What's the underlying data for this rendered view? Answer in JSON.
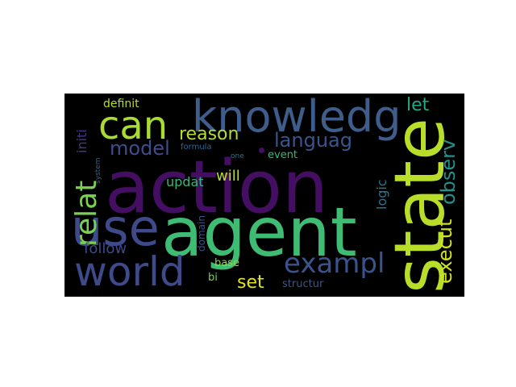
{
  "wordcloud": {
    "background": "#000000",
    "words": [
      {
        "text": "action",
        "color": "#440f63"
      },
      {
        "text": "agent",
        "color": "#3fbc73"
      },
      {
        "text": "state",
        "color": "#b8de29"
      },
      {
        "text": "use",
        "color": "#3f4a8a"
      },
      {
        "text": "knowledg",
        "color": "#3e5d8b"
      },
      {
        "text": "world",
        "color": "#3e4a89"
      },
      {
        "text": "can",
        "color": "#a8db34"
      },
      {
        "text": "exampl",
        "color": "#3a538b"
      },
      {
        "text": "relat",
        "color": "#7ad151"
      },
      {
        "text": "execut",
        "color": "#d2e21b"
      },
      {
        "text": "observ",
        "color": "#21918c"
      },
      {
        "text": "languag",
        "color": "#39558c"
      },
      {
        "text": "model",
        "color": "#3d4e8a"
      },
      {
        "text": "reason",
        "color": "#b5de2b"
      },
      {
        "text": "let",
        "color": "#22a785"
      },
      {
        "text": "set",
        "color": "#e3e418"
      },
      {
        "text": "follow",
        "color": "#3e4989"
      },
      {
        "text": "logic",
        "color": "#2a768e"
      },
      {
        "text": "updat",
        "color": "#35b779"
      },
      {
        "text": "will",
        "color": "#b5de2b"
      },
      {
        "text": "initi",
        "color": "#453781"
      },
      {
        "text": "definit",
        "color": "#b8de29"
      },
      {
        "text": "event",
        "color": "#35b779"
      },
      {
        "text": "base",
        "color": "#90d743"
      },
      {
        "text": "bi",
        "color": "#7ad151"
      },
      {
        "text": "structur",
        "color": "#3a548c"
      },
      {
        "text": "domain",
        "color": "#3b528b"
      },
      {
        "text": "formula",
        "color": "#31688e"
      },
      {
        "text": "system",
        "color": "#33638d"
      },
      {
        "text": "one",
        "color": "#2c728e"
      }
    ]
  }
}
